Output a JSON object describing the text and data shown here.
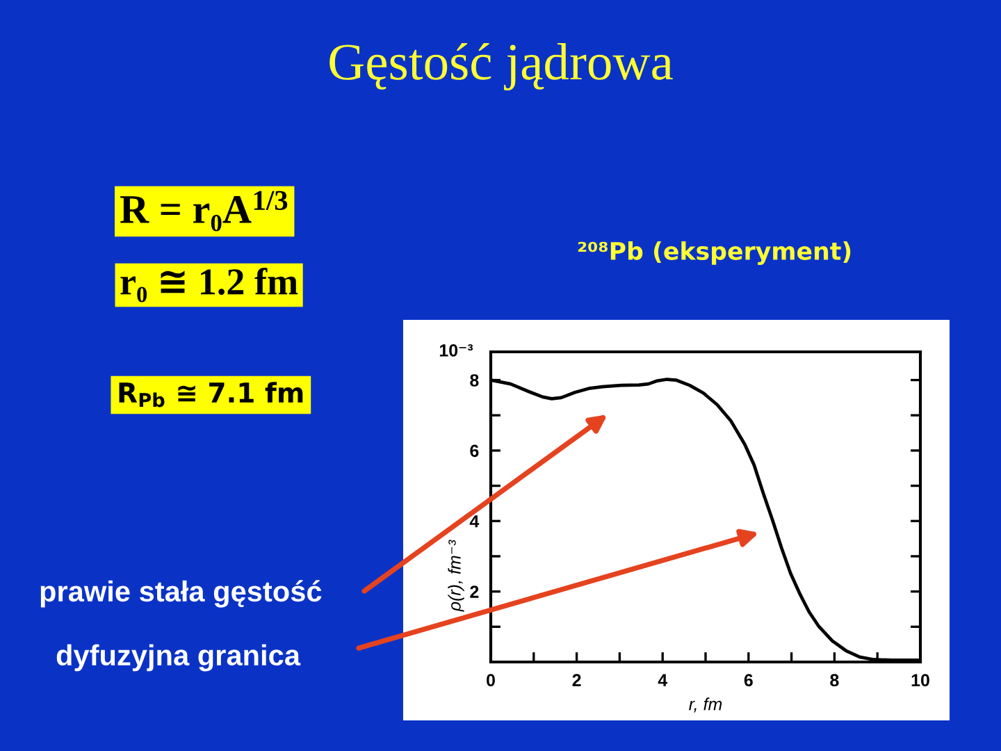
{
  "chart_data": {
    "type": "line",
    "title": "Gęstość jądrowa",
    "subtitle": "²⁰⁸Pb (eksperyment)",
    "xlabel": "r, fm",
    "ylabel": "ρ(r), fm⁻³",
    "x": [
      0,
      0.46,
      0.89,
      1.21,
      1.42,
      1.64,
      1.96,
      2.28,
      2.6,
      3.03,
      3.45,
      3.67,
      3.88,
      4.1,
      4.31,
      4.63,
      4.95,
      5.27,
      5.59,
      5.91,
      6.13,
      6.34,
      6.56,
      6.77,
      6.98,
      7.2,
      7.41,
      7.63,
      7.95,
      8.27,
      8.59,
      8.91,
      9.34,
      9.95
    ],
    "series": [
      {
        "color": "#000000",
        "values": [
          8.0,
          7.89,
          7.67,
          7.52,
          7.47,
          7.5,
          7.65,
          7.76,
          7.81,
          7.85,
          7.86,
          7.89,
          7.98,
          8.02,
          8.0,
          7.85,
          7.63,
          7.3,
          6.84,
          6.18,
          5.59,
          4.8,
          4.02,
          3.23,
          2.51,
          1.92,
          1.42,
          1.02,
          0.6,
          0.32,
          0.14,
          0.07,
          0.05,
          0.05
        ]
      }
    ],
    "xlim": [
      0,
      10
    ],
    "ylim": [
      0,
      8.8
    ],
    "xticks": [
      0,
      {
        "value": 1,
        "label": null
      },
      2,
      {
        "value": 3,
        "label": null
      },
      4,
      {
        "value": 5,
        "label": null
      },
      6,
      {
        "value": 7,
        "label": null
      },
      8,
      {
        "value": 9,
        "label": null
      },
      10
    ],
    "yticks": [
      {
        "value": 1,
        "label": null
      },
      2,
      {
        "value": 3,
        "label": null
      },
      4,
      {
        "value": 5,
        "label": null
      },
      6,
      {
        "value": 7,
        "label": null
      },
      8
    ],
    "annotations": [
      "10⁻³",
      "R = r₀A$^{1/3}$",
      "r₀ ≅ 1.2 fm",
      "R$_{Pb}$ ≅ 7.1 fm",
      "prawie stała gęstość",
      "dyfuzyjna granica"
    ]
  }
}
